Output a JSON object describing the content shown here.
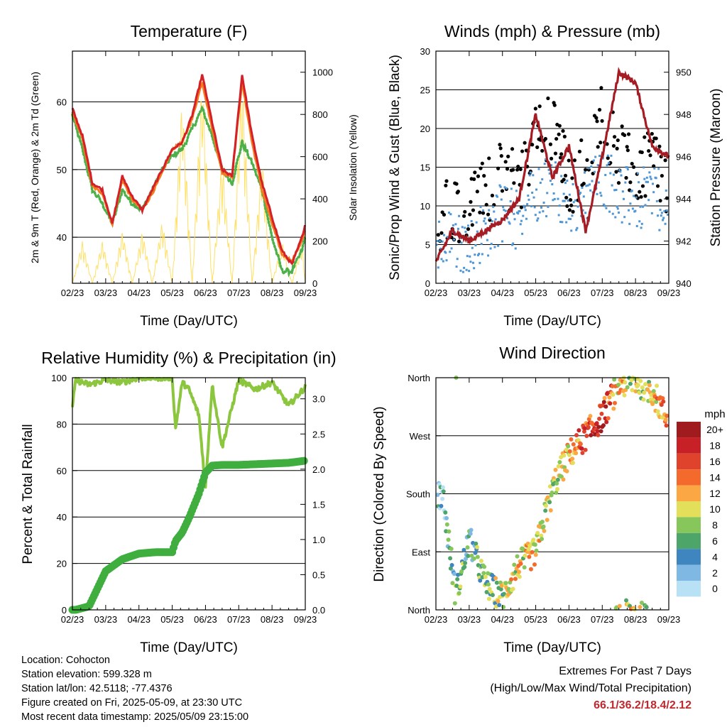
{
  "temperature_panel": {
    "title": "Temperature (F)",
    "ylabel_left": "2m & 9m T (Red, Orange) & 2m Td (Green)",
    "ylabel_right": "Solar Insolation (Yellow)",
    "xlabel": "Time (Day/UTC)"
  },
  "winds_panel": {
    "title": "Winds (mph) & Pressure (mb)",
    "ylabel_left": "Sonic/Prop Wind & Gust (Blue, Black)",
    "ylabel_right": "Station Pressure (Maroon)",
    "xlabel": "Time (Day/UTC)"
  },
  "rh_panel": {
    "title": "Relative Humidity (%) & Precipitation (in)",
    "ylabel_left": "Percent & Total Rainfall",
    "xlabel": "Time (Day/UTC)"
  },
  "wind_dir_panel": {
    "title": "Wind Direction",
    "ylabel_left": "Direction (Colored By Speed)",
    "xlabel": "Time (Day/UTC)",
    "legend_title": "mph",
    "legend_labels": [
      "20+",
      "18",
      "16",
      "14",
      "12",
      "10",
      "8",
      "6",
      "4",
      "2",
      "0"
    ],
    "legend_colors": [
      "#a01b1e",
      "#c82027",
      "#e0432c",
      "#f46a2d",
      "#fba844",
      "#e3df5a",
      "#86c65a",
      "#4ea56a",
      "#3f85c0",
      "#7fb9e3",
      "#b8e1f5"
    ]
  },
  "station_info": {
    "location": "Location: Cohocton",
    "elevation": "Station elevation: 599.328 m",
    "latlon": "Station lat/lon: 42.5118; -77.4376",
    "created": "Figure created on Fri, 2025-05-09, at 23:30 UTC",
    "recent": "Most recent data timestamp: 2025/05/09 23:15:00"
  },
  "extremes": {
    "line1": "Extremes For Past 7 Days",
    "line2": "(High/Low/Max Wind/Total Precipitation)",
    "values": "66.1/36.2/18.4/2.12"
  },
  "colors": {
    "temp_2m": "#d42027",
    "temp_9m": "#f47a20",
    "dewpoint": "#4db049",
    "solar": "#ffe066",
    "wind_sonic": "#4f96d4",
    "wind_gust": "#000000",
    "pressure": "#a51c24",
    "rh": "#8cc63f",
    "precip": "#3fae3f"
  },
  "chart_data": [
    {
      "type": "line",
      "panel": "temperature",
      "title": "Temperature (F)",
      "xlabel": "Time (Day/UTC)",
      "ylabel": "2m & 9m T (Red, Orange) & 2m Td (Green)",
      "y2label": "Solar Insolation (Yellow)",
      "x_ticks": [
        "02/23",
        "03/23",
        "04/23",
        "05/23",
        "06/23",
        "07/23",
        "08/23",
        "09/23"
      ],
      "y_ticks": [
        40,
        50,
        60
      ],
      "y2_ticks": [
        0,
        200,
        400,
        600,
        800,
        1000
      ],
      "ylim": [
        33.2,
        67.5
      ],
      "y2lim": [
        0,
        1100
      ],
      "x": [
        0,
        0.3,
        0.6,
        0.9,
        1.2,
        1.5,
        1.8,
        2.1,
        2.4,
        2.7,
        3.0,
        3.3,
        3.6,
        3.9,
        4.2,
        4.5,
        4.8,
        5.1,
        5.4,
        5.7,
        6.0,
        6.3,
        6.6,
        6.9,
        7.0
      ],
      "series": [
        {
          "name": "2m T",
          "values": [
            59,
            55,
            48,
            47,
            42,
            49,
            46,
            44,
            47,
            50,
            53,
            54,
            58,
            64,
            57,
            50,
            49,
            64,
            55,
            48,
            43,
            38,
            36,
            40,
            42
          ]
        },
        {
          "name": "9m T",
          "values": [
            58.5,
            54.5,
            47.5,
            46.5,
            42,
            48.5,
            45.5,
            44,
            46.5,
            49.5,
            53,
            54,
            57.5,
            63,
            56,
            49.5,
            49,
            63,
            54,
            47,
            42,
            37.5,
            36.5,
            39.5,
            41
          ]
        },
        {
          "name": "2m Td",
          "values": [
            58,
            53,
            47,
            45,
            42,
            47,
            45,
            44,
            47,
            50,
            52,
            53,
            56,
            59,
            55,
            50,
            48,
            54,
            51,
            47,
            40,
            35,
            35,
            38,
            40
          ]
        },
        {
          "name": "Solar Insolation",
          "axis": "right",
          "values": [
            0,
            200,
            0,
            200,
            0,
            250,
            0,
            250,
            0,
            300,
            0,
            900,
            0,
            1000,
            0,
            600,
            0,
            1000,
            0,
            600,
            0,
            200,
            0,
            200,
            0
          ]
        }
      ]
    },
    {
      "type": "scatter",
      "panel": "winds",
      "title": "Winds (mph) & Pressure (mb)",
      "xlabel": "Time (Day/UTC)",
      "ylabel": "Sonic/Prop Wind & Gust (Blue, Black)",
      "y2label": "Station Pressure (Maroon)",
      "x_ticks": [
        "02/23",
        "03/23",
        "04/23",
        "05/23",
        "06/23",
        "07/23",
        "08/23",
        "09/23"
      ],
      "y_ticks": [
        0,
        5,
        10,
        15,
        20,
        25,
        30
      ],
      "y2_ticks": [
        940,
        942,
        944,
        946,
        948,
        950
      ],
      "ylim": [
        0,
        30
      ],
      "y2lim": [
        940,
        951
      ],
      "x": [
        0,
        0.5,
        1.0,
        1.5,
        2.0,
        2.5,
        3.0,
        3.5,
        4.0,
        4.5,
        5.0,
        5.5,
        6.0,
        6.5,
        7.0
      ],
      "series": [
        {
          "name": "Sonic/Prop Wind",
          "values": [
            5,
            6,
            5,
            7,
            9,
            8,
            12,
            13,
            10,
            11,
            14,
            12,
            10,
            12,
            9
          ]
        },
        {
          "name": "Gust",
          "values": [
            8,
            10,
            9,
            12,
            14,
            13,
            19,
            20,
            13,
            15,
            22,
            17,
            14,
            17,
            12
          ]
        },
        {
          "name": "Station Pressure",
          "axis": "right",
          "values": [
            941,
            942.5,
            942,
            942.5,
            943,
            944,
            948,
            945,
            946.5,
            942.5,
            946,
            950,
            949.5,
            946.5,
            946
          ]
        }
      ]
    },
    {
      "type": "line",
      "panel": "humidity_precip",
      "title": "Relative Humidity (%) & Precipitation (in)",
      "xlabel": "Time (Day/UTC)",
      "ylabel": "Percent & Total Rainfall",
      "x_ticks": [
        "02/23",
        "03/23",
        "04/23",
        "05/23",
        "06/23",
        "07/23",
        "08/23",
        "09/23"
      ],
      "y_ticks": [
        0,
        20,
        40,
        60,
        80,
        100
      ],
      "y2_ticks": [
        "0.0",
        "0.5",
        "1.0",
        "1.5",
        "2.0",
        "2.5",
        "3.0"
      ],
      "ylim": [
        0,
        100
      ],
      "y2lim": [
        0,
        3.3
      ],
      "x": [
        0,
        0.1,
        0.5,
        1.0,
        1.5,
        2.0,
        2.5,
        3.0,
        3.1,
        3.3,
        3.5,
        3.8,
        4.0,
        4.2,
        4.5,
        5.0,
        5.5,
        6.0,
        6.5,
        7.0
      ],
      "series": [
        {
          "name": "Relative Humidity",
          "values": [
            88,
            99,
            97,
            99,
            98,
            100,
            100,
            100,
            78,
            98,
            95,
            84,
            53,
            97,
            70,
            99,
            95,
            98,
            88,
            96
          ]
        },
        {
          "name": "Total Precipitation",
          "axis": "right",
          "values": [
            0,
            0,
            0.05,
            0.55,
            0.72,
            0.8,
            0.82,
            0.82,
            0.98,
            1.1,
            1.3,
            1.65,
            1.95,
            2.05,
            2.06,
            2.06,
            2.07,
            2.08,
            2.09,
            2.12
          ]
        }
      ]
    },
    {
      "type": "scatter",
      "panel": "wind_direction",
      "title": "Wind Direction",
      "xlabel": "Time (Day/UTC)",
      "ylabel": "Direction (Colored By Speed)",
      "x_ticks": [
        "02/23",
        "03/23",
        "04/23",
        "05/23",
        "06/23",
        "07/23",
        "08/23",
        "09/23"
      ],
      "y_ticks": [
        "North",
        "East",
        "South",
        "West",
        "North"
      ],
      "ylim": [
        0,
        360
      ],
      "colorbar": {
        "label": "mph",
        "ticks": [
          "0",
          "2",
          "4",
          "6",
          "8",
          "10",
          "12",
          "14",
          "16",
          "18",
          "20+"
        ]
      },
      "x": [
        0.2,
        0.6,
        1.0,
        1.5,
        2.0,
        2.5,
        3.0,
        3.3,
        3.6,
        4.0,
        4.5,
        5.0,
        5.5,
        6.0,
        6.5,
        6.9
      ],
      "series": [
        {
          "name": "Direction",
          "values": [
            180,
            20,
            110,
            40,
            20,
            70,
            90,
            150,
            200,
            240,
            270,
            300,
            350,
            355,
            340,
            300
          ]
        },
        {
          "name": "Speed",
          "values": [
            3,
            6,
            6,
            7,
            8,
            10,
            12,
            10,
            8,
            11,
            16,
            18,
            10,
            9,
            11,
            12
          ]
        }
      ]
    }
  ]
}
